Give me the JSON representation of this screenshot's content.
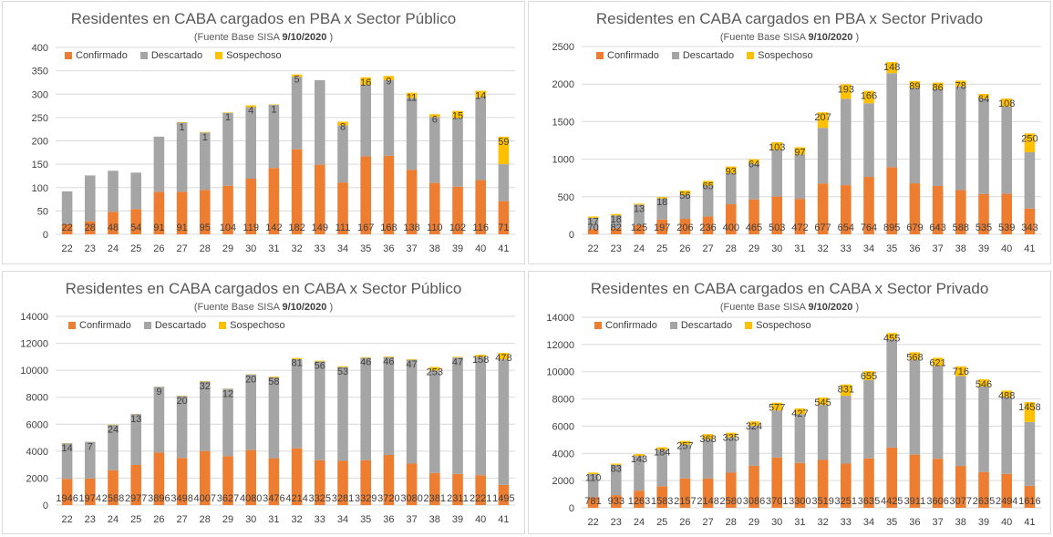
{
  "colors": {
    "confirmado": "#ED7D31",
    "descartado": "#A5A5A5",
    "sospechoso": "#FFC000",
    "grid": "#D9D9D9",
    "text": "#404040"
  },
  "chart_data": [
    {
      "type": "bar",
      "stacked": true,
      "title": "Residentes en CABA cargados en PBA x Sector Público",
      "subtitle_prefix": "(Fuente  Base SISA",
      "subtitle_date": "9/10/2020",
      "subtitle_suffix": ")",
      "legend": [
        "Confirmado",
        "Descartado",
        "Sospechoso"
      ],
      "ylim": [
        0,
        400
      ],
      "yticks": [
        0,
        50,
        100,
        150,
        200,
        250,
        300,
        350,
        400
      ],
      "categories": [
        "22",
        "23",
        "24",
        "25",
        "26",
        "27",
        "28",
        "29",
        "30",
        "31",
        "32",
        "33",
        "34",
        "35",
        "36",
        "37",
        "38",
        "39",
        "40",
        "41"
      ],
      "series": [
        {
          "name": "Confirmado",
          "values": [
            22,
            28,
            48,
            54,
            91,
            91,
            95,
            104,
            119,
            142,
            182,
            149,
            111,
            167,
            168,
            138,
            110,
            102,
            116,
            71
          ]
        },
        {
          "name": "Descartado",
          "values": [
            70,
            98,
            88,
            78,
            118,
            148,
            123,
            156,
            153,
            135,
            155,
            181,
            122,
            153,
            162,
            154,
            141,
            147,
            177,
            79
          ]
        },
        {
          "name": "Sospechoso",
          "values": [
            0,
            0,
            0,
            0,
            0,
            1,
            1,
            1,
            4,
            1,
            5,
            0,
            8,
            16,
            9,
            11,
            6,
            15,
            14,
            59
          ]
        }
      ],
      "labels_descartado": false
    },
    {
      "type": "bar",
      "stacked": true,
      "title": "Residentes en CABA cargados en PBA x Sector Privado",
      "subtitle_prefix": "(Fuente  Base SISA",
      "subtitle_date": "9/10/2020",
      "subtitle_suffix": ")",
      "legend": [
        "Confirmado",
        "Descartado",
        "Sospechoso"
      ],
      "ylim": [
        0,
        2500
      ],
      "yticks": [
        0,
        500,
        1000,
        1500,
        2000,
        2500
      ],
      "categories": [
        "22",
        "23",
        "24",
        "25",
        "26",
        "27",
        "28",
        "29",
        "30",
        "31",
        "32",
        "33",
        "34",
        "35",
        "36",
        "37",
        "38",
        "39",
        "40",
        "41"
      ],
      "series": [
        {
          "name": "Confirmado",
          "values": [
            70,
            82,
            125,
            197,
            206,
            236,
            400,
            465,
            503,
            472,
            677,
            654,
            764,
            895,
            679,
            643,
            588,
            535,
            539,
            343
          ]
        },
        {
          "name": "Descartado",
          "values": [
            150,
            170,
            270,
            280,
            320,
            410,
            410,
            470,
            620,
            590,
            740,
            1150,
            980,
            1250,
            1270,
            1290,
            1380,
            1270,
            1160,
            750
          ]
        },
        {
          "name": "Sospechoso",
          "values": [
            17,
            18,
            13,
            18,
            56,
            65,
            93,
            64,
            103,
            97,
            207,
            193,
            166,
            148,
            89,
            86,
            78,
            64,
            108,
            250
          ]
        }
      ],
      "labels_descartado": false
    },
    {
      "type": "bar",
      "stacked": true,
      "title": "Residentes en CABA cargados en CABA x Sector Público",
      "subtitle_prefix": "(Fuente  Base SISA",
      "subtitle_date": "9/10/2020",
      "subtitle_suffix": ")",
      "legend": [
        "Confirmado",
        "Descartado",
        "Sospechoso"
      ],
      "ylim": [
        0,
        14000
      ],
      "yticks": [
        0,
        2000,
        4000,
        6000,
        8000,
        10000,
        12000,
        14000
      ],
      "categories": [
        "22",
        "23",
        "24",
        "25",
        "26",
        "27",
        "28",
        "29",
        "30",
        "31",
        "32",
        "33",
        "34",
        "35",
        "36",
        "37",
        "38",
        "39",
        "40",
        "41"
      ],
      "series": [
        {
          "name": "Confirmado",
          "values": [
            1946,
            1974,
            2588,
            2977,
            3896,
            3498,
            4007,
            3627,
            4080,
            3476,
            4214,
            3325,
            3281,
            3329,
            3720,
            3080,
            2381,
            2311,
            2221,
            1495
          ]
        },
        {
          "name": "Descartado",
          "values": [
            2640,
            2720,
            3360,
            3780,
            4880,
            4600,
            5160,
            5000,
            5610,
            6000,
            6620,
            7330,
            6960,
            7600,
            7260,
            7700,
            7610,
            8640,
            8770,
            9320
          ]
        },
        {
          "name": "Sospechoso",
          "values": [
            14,
            7,
            24,
            13,
            9,
            20,
            32,
            12,
            20,
            58,
            81,
            56,
            53,
            46,
            46,
            47,
            253,
            47,
            158,
            478
          ]
        }
      ],
      "labels_descartado": false
    },
    {
      "type": "bar",
      "stacked": true,
      "title": "Residentes en CABA cargados en CABA x Sector Privado",
      "subtitle_prefix": "(Fuente  Base SISA",
      "subtitle_date": "9/10/2020",
      "subtitle_suffix": ")",
      "legend": [
        "Confirmado",
        "Descartado",
        "Sospechoso"
      ],
      "ylim": [
        0,
        14000
      ],
      "yticks": [
        0,
        2000,
        4000,
        6000,
        8000,
        10000,
        12000,
        14000
      ],
      "categories": [
        "22",
        "23",
        "24",
        "25",
        "26",
        "27",
        "28",
        "29",
        "30",
        "31",
        "32",
        "33",
        "34",
        "35",
        "36",
        "37",
        "38",
        "39",
        "40",
        "41"
      ],
      "series": [
        {
          "name": "Confirmado",
          "values": [
            781,
            933,
            1263,
            1583,
            2157,
            2148,
            2580,
            3086,
            3701,
            3300,
            3519,
            3251,
            3635,
            4425,
            3911,
            3606,
            3077,
            2635,
            2494,
            1616
          ]
        },
        {
          "name": "Descartado",
          "values": [
            1700,
            2230,
            2540,
            2680,
            2500,
            2900,
            2600,
            2940,
            3450,
            3580,
            4040,
            4980,
            5760,
            7960,
            6950,
            6800,
            6600,
            6270,
            5630,
            4690
          ]
        },
        {
          "name": "Sospechoso",
          "values": [
            110,
            83,
            143,
            184,
            257,
            368,
            335,
            324,
            577,
            427,
            545,
            831,
            655,
            455,
            568,
            621,
            716,
            546,
            488,
            1458
          ]
        }
      ],
      "labels_descartado": false
    }
  ]
}
